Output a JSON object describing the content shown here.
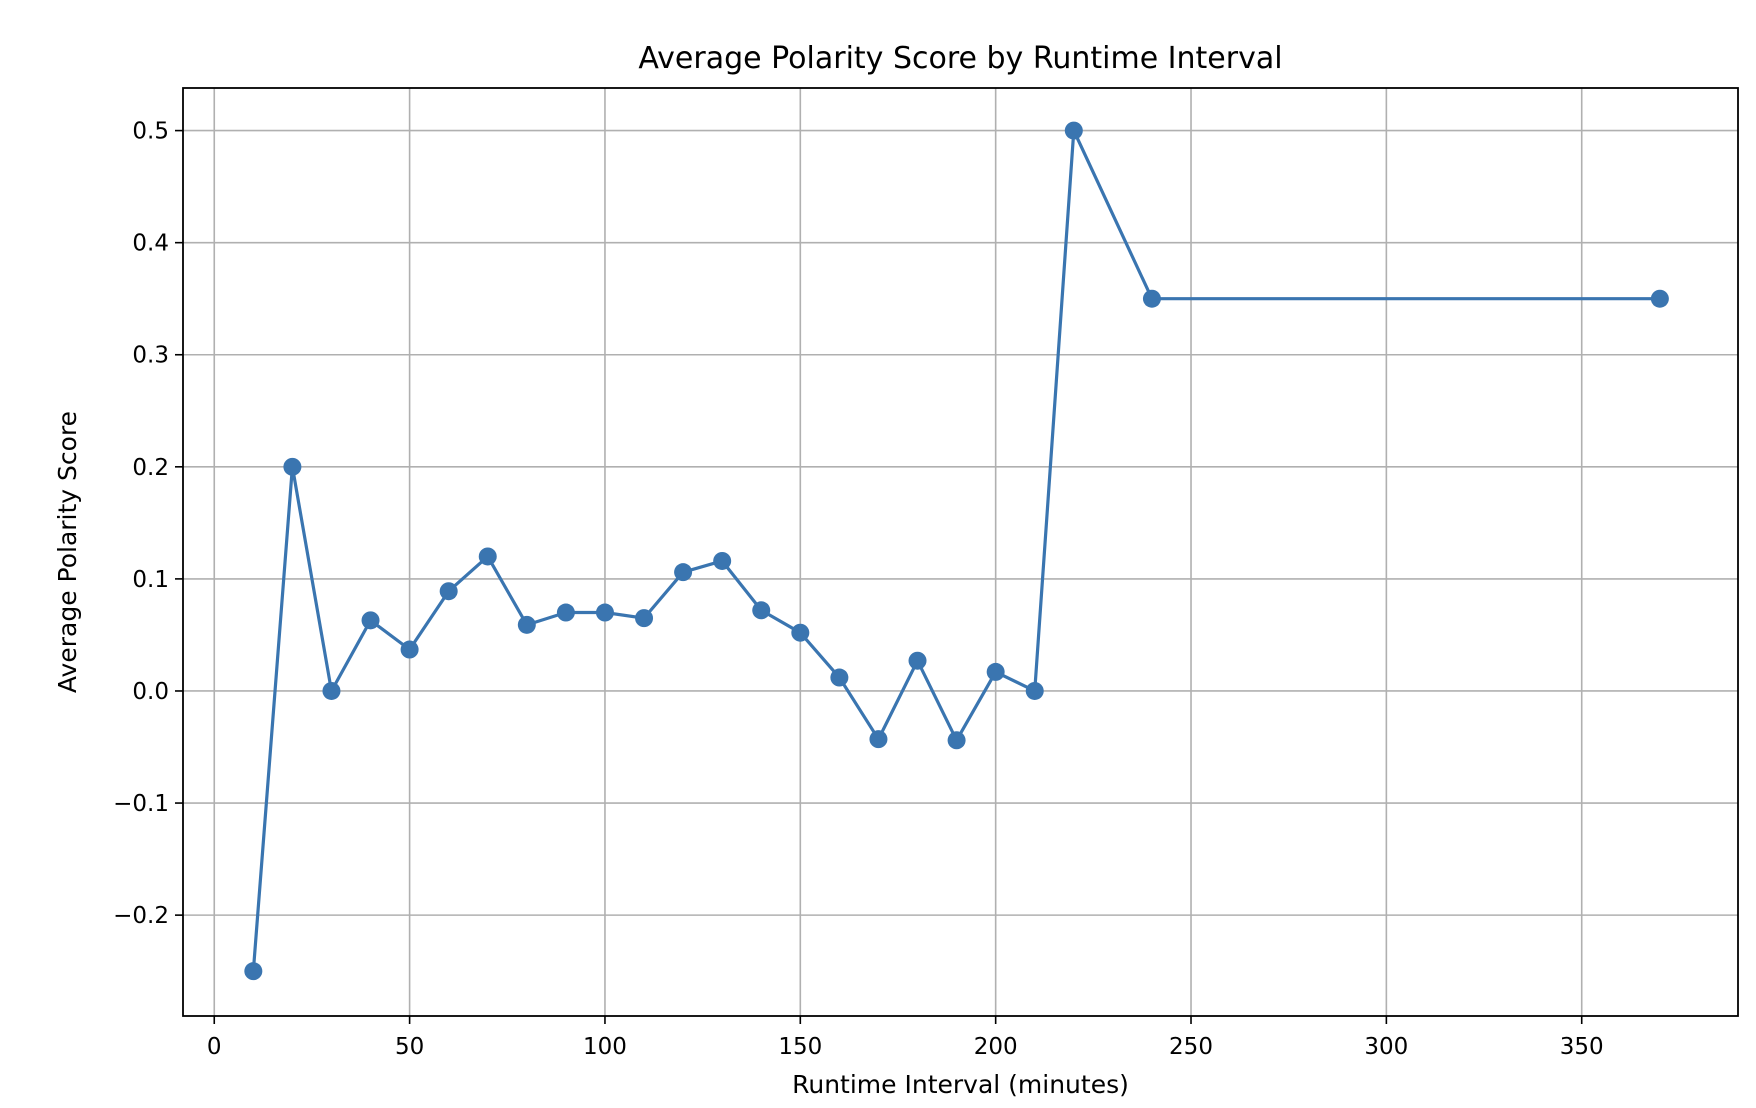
{
  "chart_data": {
    "type": "line",
    "title": "Average Polarity Score by Runtime Interval",
    "xlabel": "Runtime Interval (minutes)",
    "ylabel": "Average Polarity Score",
    "xlim": [
      -8,
      390
    ],
    "ylim": [
      -0.29,
      0.538
    ],
    "x_ticks": [
      0,
      50,
      100,
      150,
      200,
      250,
      300,
      350
    ],
    "x_tick_labels": [
      "0",
      "50",
      "100",
      "150",
      "200",
      "250",
      "300",
      "350"
    ],
    "y_ticks": [
      -0.2,
      -0.1,
      0.0,
      0.1,
      0.2,
      0.3,
      0.4,
      0.5
    ],
    "y_tick_labels": [
      "−0.2",
      "−0.1",
      "0.0",
      "0.1",
      "0.2",
      "0.3",
      "0.4",
      "0.5"
    ],
    "grid": true,
    "marker": "circle",
    "series": [
      {
        "color": "#3a75b0",
        "x": [
          10,
          20,
          30,
          40,
          50,
          60,
          70,
          80,
          90,
          100,
          110,
          120,
          130,
          140,
          150,
          160,
          170,
          180,
          190,
          200,
          210,
          220,
          240,
          370
        ],
        "y": [
          -0.25,
          0.2,
          0.0,
          0.063,
          0.037,
          0.089,
          0.12,
          0.059,
          0.07,
          0.07,
          0.065,
          0.106,
          0.116,
          0.072,
          0.052,
          0.012,
          -0.043,
          0.027,
          -0.044,
          0.017,
          0.0,
          0.5,
          0.35,
          0.35
        ]
      }
    ]
  }
}
